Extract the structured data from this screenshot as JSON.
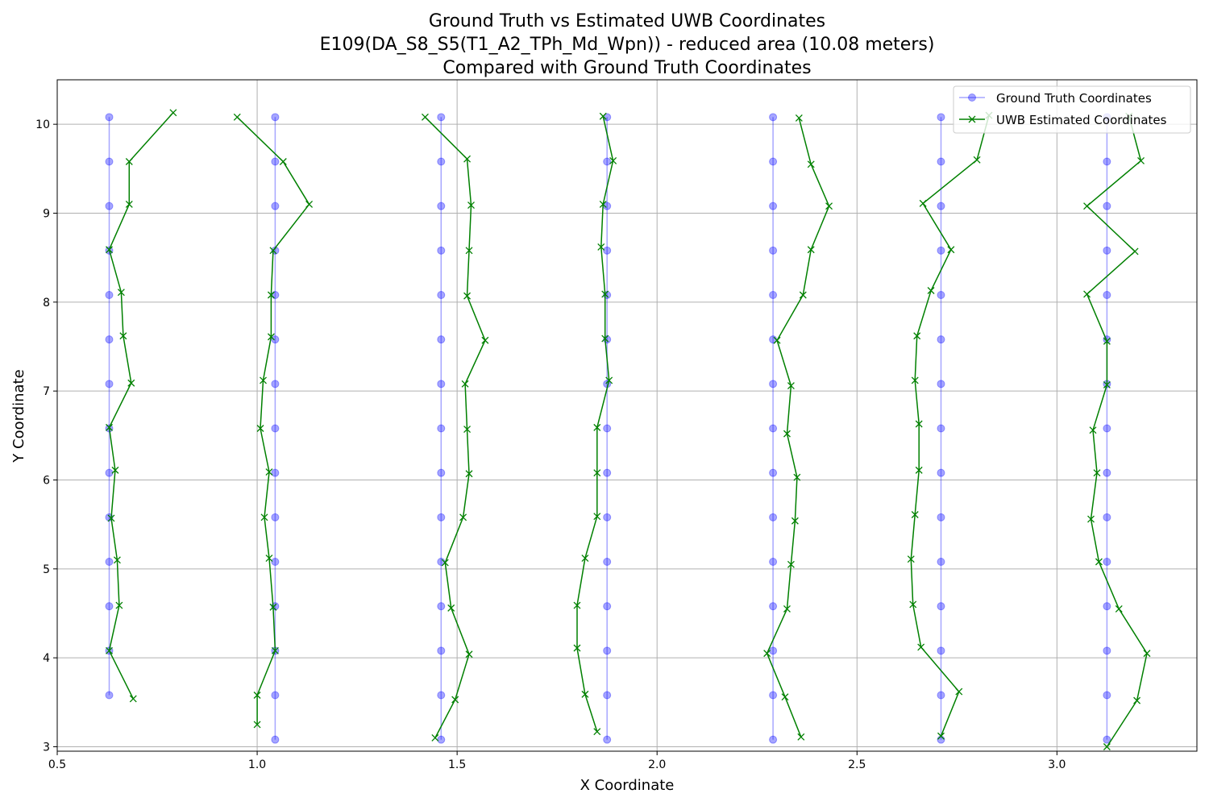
{
  "chart_data": {
    "type": "line",
    "title_lines": [
      "Ground Truth vs Estimated UWB Coordinates",
      "E109(DA_S8_S5(T1_A2_TPh_Md_Wpn)) - reduced area (10.08 meters)",
      "Compared with Ground Truth Coordinates"
    ],
    "xlabel": "X Coordinate",
    "ylabel": "Y Coordinate",
    "xlim": [
      0.5,
      3.35
    ],
    "ylim": [
      2.95,
      10.5
    ],
    "xticks": [
      "0.5",
      "1.0",
      "1.5",
      "2.0",
      "2.5",
      "3.0"
    ],
    "yticks": [
      "3",
      "4",
      "5",
      "6",
      "7",
      "8",
      "9",
      "10"
    ],
    "grid": true,
    "legend_position": "top-right",
    "legend": [
      "Ground Truth Coordinates",
      "UWB Estimated Coordinates"
    ],
    "series": [
      {
        "name": "Ground Truth Coordinates",
        "color": "#0000ff",
        "marker": "circle",
        "segments": [
          [
            [
              0.63,
              10.08
            ],
            [
              0.63,
              9.58
            ],
            [
              0.63,
              9.08
            ],
            [
              0.63,
              8.58
            ],
            [
              0.63,
              8.08
            ],
            [
              0.63,
              7.58
            ],
            [
              0.63,
              7.08
            ],
            [
              0.63,
              6.58
            ],
            [
              0.63,
              6.08
            ],
            [
              0.63,
              5.58
            ],
            [
              0.63,
              5.08
            ],
            [
              0.63,
              4.58
            ],
            [
              0.63,
              4.08
            ],
            [
              0.63,
              3.58
            ]
          ],
          [
            [
              1.045,
              10.08
            ],
            [
              1.045,
              9.58
            ],
            [
              1.045,
              9.08
            ],
            [
              1.045,
              8.58
            ],
            [
              1.045,
              8.08
            ],
            [
              1.045,
              7.58
            ],
            [
              1.045,
              7.08
            ],
            [
              1.045,
              6.58
            ],
            [
              1.045,
              6.08
            ],
            [
              1.045,
              5.58
            ],
            [
              1.045,
              5.08
            ],
            [
              1.045,
              4.58
            ],
            [
              1.045,
              4.08
            ],
            [
              1.045,
              3.58
            ],
            [
              1.045,
              3.08
            ]
          ],
          [
            [
              1.46,
              10.08
            ],
            [
              1.46,
              9.58
            ],
            [
              1.46,
              9.08
            ],
            [
              1.46,
              8.58
            ],
            [
              1.46,
              8.08
            ],
            [
              1.46,
              7.58
            ],
            [
              1.46,
              7.08
            ],
            [
              1.46,
              6.58
            ],
            [
              1.46,
              6.08
            ],
            [
              1.46,
              5.58
            ],
            [
              1.46,
              5.08
            ],
            [
              1.46,
              4.58
            ],
            [
              1.46,
              4.08
            ],
            [
              1.46,
              3.58
            ],
            [
              1.46,
              3.08
            ]
          ],
          [
            [
              1.875,
              10.08
            ],
            [
              1.875,
              9.58
            ],
            [
              1.875,
              9.08
            ],
            [
              1.875,
              8.58
            ],
            [
              1.875,
              8.08
            ],
            [
              1.875,
              7.58
            ],
            [
              1.875,
              7.08
            ],
            [
              1.875,
              6.58
            ],
            [
              1.875,
              6.08
            ],
            [
              1.875,
              5.58
            ],
            [
              1.875,
              5.08
            ],
            [
              1.875,
              4.58
            ],
            [
              1.875,
              4.08
            ],
            [
              1.875,
              3.58
            ],
            [
              1.875,
              3.08
            ]
          ],
          [
            [
              2.29,
              10.08
            ],
            [
              2.29,
              9.58
            ],
            [
              2.29,
              9.08
            ],
            [
              2.29,
              8.58
            ],
            [
              2.29,
              8.08
            ],
            [
              2.29,
              7.58
            ],
            [
              2.29,
              7.08
            ],
            [
              2.29,
              6.58
            ],
            [
              2.29,
              6.08
            ],
            [
              2.29,
              5.58
            ],
            [
              2.29,
              5.08
            ],
            [
              2.29,
              4.58
            ],
            [
              2.29,
              4.08
            ],
            [
              2.29,
              3.58
            ],
            [
              2.29,
              3.08
            ]
          ],
          [
            [
              2.71,
              10.08
            ],
            [
              2.71,
              9.58
            ],
            [
              2.71,
              9.08
            ],
            [
              2.71,
              8.58
            ],
            [
              2.71,
              8.08
            ],
            [
              2.71,
              7.58
            ],
            [
              2.71,
              7.08
            ],
            [
              2.71,
              6.58
            ],
            [
              2.71,
              6.08
            ],
            [
              2.71,
              5.58
            ],
            [
              2.71,
              5.08
            ],
            [
              2.71,
              4.58
            ],
            [
              2.71,
              4.08
            ],
            [
              2.71,
              3.58
            ],
            [
              2.71,
              3.08
            ]
          ],
          [
            [
              3.125,
              10.08
            ],
            [
              3.125,
              9.58
            ],
            [
              3.125,
              9.08
            ],
            [
              3.125,
              8.58
            ],
            [
              3.125,
              8.08
            ],
            [
              3.125,
              7.58
            ],
            [
              3.125,
              7.08
            ],
            [
              3.125,
              6.58
            ],
            [
              3.125,
              6.08
            ],
            [
              3.125,
              5.58
            ],
            [
              3.125,
              5.08
            ],
            [
              3.125,
              4.58
            ],
            [
              3.125,
              4.08
            ],
            [
              3.125,
              3.58
            ],
            [
              3.125,
              3.08
            ]
          ]
        ]
      },
      {
        "name": "UWB Estimated Coordinates",
        "color": "#008000",
        "marker": "x",
        "segments": [
          [
            [
              0.79,
              10.13
            ],
            [
              0.68,
              9.58
            ],
            [
              0.68,
              9.1
            ],
            [
              0.63,
              8.59
            ],
            [
              0.66,
              8.11
            ],
            [
              0.665,
              7.62
            ],
            [
              0.685,
              7.09
            ],
            [
              0.63,
              6.59
            ],
            [
              0.645,
              6.11
            ],
            [
              0.635,
              5.57
            ],
            [
              0.65,
              5.1
            ],
            [
              0.655,
              4.59
            ],
            [
              0.63,
              4.08
            ],
            [
              0.69,
              3.54
            ]
          ],
          [
            [
              0.95,
              10.08
            ],
            [
              1.065,
              9.58
            ],
            [
              1.13,
              9.1
            ],
            [
              1.04,
              8.58
            ],
            [
              1.035,
              8.08
            ],
            [
              1.035,
              7.61
            ],
            [
              1.015,
              7.12
            ],
            [
              1.008,
              6.58
            ],
            [
              1.03,
              6.09
            ],
            [
              1.018,
              5.58
            ],
            [
              1.03,
              5.12
            ],
            [
              1.04,
              4.57
            ],
            [
              1.045,
              4.08
            ],
            [
              1.0,
              3.58
            ],
            [
              1.0,
              3.25
            ]
          ],
          [
            [
              1.42,
              10.08
            ],
            [
              1.525,
              9.61
            ],
            [
              1.535,
              9.09
            ],
            [
              1.53,
              8.58
            ],
            [
              1.525,
              8.07
            ],
            [
              1.57,
              7.57
            ],
            [
              1.52,
              7.08
            ],
            [
              1.525,
              6.57
            ],
            [
              1.53,
              6.07
            ],
            [
              1.515,
              5.58
            ],
            [
              1.47,
              5.07
            ],
            [
              1.485,
              4.56
            ],
            [
              1.53,
              4.04
            ],
            [
              1.495,
              3.53
            ],
            [
              1.445,
              3.1
            ]
          ],
          [
            [
              1.865,
              10.09
            ],
            [
              1.89,
              9.59
            ],
            [
              1.865,
              9.1
            ],
            [
              1.86,
              8.62
            ],
            [
              1.87,
              8.09
            ],
            [
              1.87,
              7.59
            ],
            [
              1.88,
              7.12
            ],
            [
              1.85,
              6.59
            ],
            [
              1.85,
              6.08
            ],
            [
              1.85,
              5.59
            ],
            [
              1.82,
              5.12
            ],
            [
              1.8,
              4.59
            ],
            [
              1.8,
              4.11
            ],
            [
              1.82,
              3.59
            ],
            [
              1.85,
              3.17
            ]
          ],
          [
            [
              2.355,
              10.07
            ],
            [
              2.385,
              9.55
            ],
            [
              2.43,
              9.08
            ],
            [
              2.385,
              8.59
            ],
            [
              2.365,
              8.08
            ],
            [
              2.3,
              7.57
            ],
            [
              2.335,
              7.06
            ],
            [
              2.325,
              6.52
            ],
            [
              2.35,
              6.03
            ],
            [
              2.345,
              5.54
            ],
            [
              2.335,
              5.05
            ],
            [
              2.325,
              4.55
            ],
            [
              2.275,
              4.05
            ],
            [
              2.32,
              3.56
            ],
            [
              2.36,
              3.11
            ]
          ],
          [
            [
              2.83,
              10.1
            ],
            [
              2.8,
              9.6
            ],
            [
              2.665,
              9.11
            ],
            [
              2.735,
              8.59
            ],
            [
              2.685,
              8.13
            ],
            [
              2.65,
              7.62
            ],
            [
              2.645,
              7.12
            ],
            [
              2.655,
              6.63
            ],
            [
              2.655,
              6.11
            ],
            [
              2.645,
              5.61
            ],
            [
              2.635,
              5.11
            ],
            [
              2.64,
              4.6
            ],
            [
              2.66,
              4.12
            ],
            [
              2.755,
              3.62
            ],
            [
              2.71,
              3.12
            ]
          ],
          [
            [
              3.18,
              10.09
            ],
            [
              3.21,
              9.59
            ],
            [
              3.075,
              9.08
            ],
            [
              3.195,
              8.57
            ],
            [
              3.075,
              8.09
            ],
            [
              3.125,
              7.56
            ],
            [
              3.125,
              7.07
            ],
            [
              3.09,
              6.56
            ],
            [
              3.1,
              6.08
            ],
            [
              3.085,
              5.56
            ],
            [
              3.105,
              5.08
            ],
            [
              3.155,
              4.55
            ],
            [
              3.225,
              4.05
            ],
            [
              3.2,
              3.52
            ],
            [
              3.125,
              3.0
            ]
          ]
        ]
      }
    ]
  }
}
